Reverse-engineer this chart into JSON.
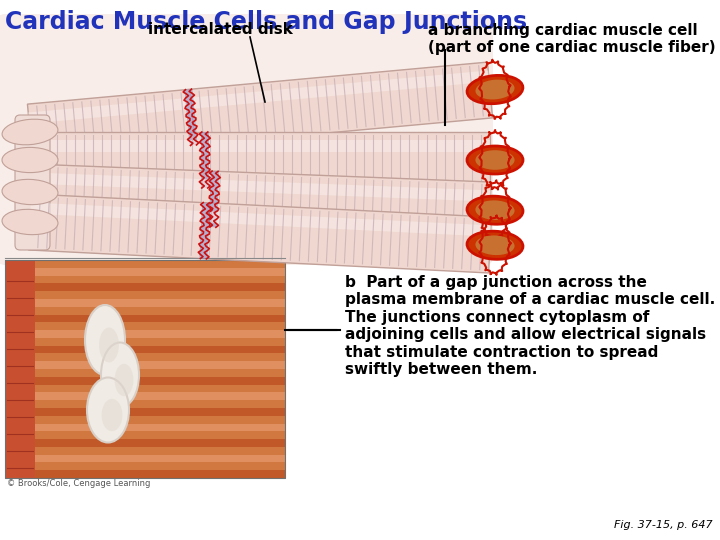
{
  "title": "Cardiac Muscle Cells and Gap Junctions",
  "title_color": "#2233BB",
  "title_fontsize": 17,
  "label1_text": "intercalated disk",
  "label2_text": "a branching cardiac muscle cell\n(part of one cardiac muscle fiber)",
  "label_b_text": "b  Part of a gap junction across the\nplasma membrane of a cardiac muscle cell.\nThe junctions connect cytoplasm of\nadjoining cells and allow electrical signals\nthat stimulate contraction to spread\nswiftly between them.",
  "copyright_text": "© Brooks/Cole, Cengage Learning",
  "fig_text": "Fig. 37-15, p. 647",
  "background_color": "#ffffff",
  "flesh_light": "#f0d8d0",
  "flesh_mid": "#e0c0b0",
  "flesh_dark": "#d0a090",
  "stripe_color": "#c8b0b0",
  "intercalated_color": "#9898cc",
  "red_serrated": "#cc1111",
  "cut_end_fill": "#c87840",
  "lower_bg1": "#e8885a",
  "lower_bg2": "#d06030",
  "lower_stripe1": "#d07840",
  "lower_stripe2": "#b85c28",
  "lower_white": "#f0ece6"
}
